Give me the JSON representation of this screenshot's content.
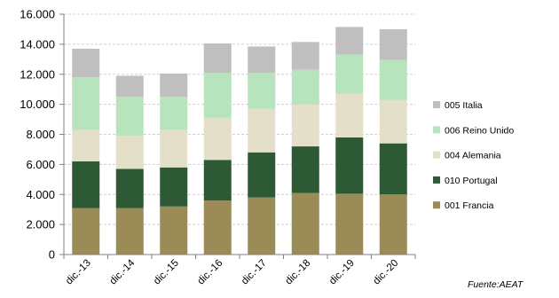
{
  "chart_data": {
    "type": "bar",
    "stacked": true,
    "categories": [
      "dic.-13",
      "dic.-14",
      "dic.-15",
      "dic.-16",
      "dic.-17",
      "dic.-18",
      "dic.-19",
      "dic.-20"
    ],
    "series": [
      {
        "name": "001 Francia",
        "color": "#9a8b57",
        "values": [
          3100,
          3100,
          3200,
          3600,
          3800,
          4100,
          4050,
          4000
        ]
      },
      {
        "name": "010 Portugal",
        "color": "#2d5a35",
        "values": [
          3100,
          2600,
          2600,
          2700,
          3000,
          3100,
          3750,
          3400
        ]
      },
      {
        "name": "004 Alemania",
        "color": "#e3dfc9",
        "values": [
          2100,
          2200,
          2500,
          2800,
          2900,
          2800,
          2900,
          2900
        ]
      },
      {
        "name": "006 Reino Unido",
        "color": "#b7e3bd",
        "values": [
          3500,
          2600,
          2200,
          3000,
          2400,
          2300,
          2600,
          2650
        ]
      },
      {
        "name": "005 Italia",
        "color": "#bfbfbf",
        "values": [
          1900,
          1400,
          1550,
          1950,
          1750,
          1850,
          1850,
          2050
        ]
      }
    ],
    "y_ticks": [
      "0",
      "2.000",
      "4.000",
      "6.000",
      "8.000",
      "10.000",
      "12.000",
      "14.000",
      "16.000"
    ],
    "ylim": [
      0,
      16000
    ],
    "grid": true,
    "legend_position": "right",
    "legend_order": [
      "005 Italia",
      "006 Reino Unido",
      "004 Alemania",
      "010 Portugal",
      "001 Francia"
    ],
    "title": "",
    "xlabel": "",
    "ylabel": ""
  },
  "source_note": "Fuente:AEAT"
}
